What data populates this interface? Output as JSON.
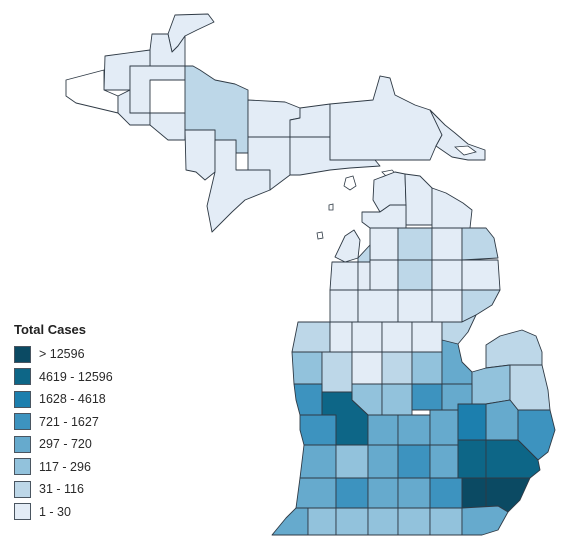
{
  "legend": {
    "title": "Total Cases",
    "items": [
      {
        "label": "> 12596",
        "color": "#0b4a63"
      },
      {
        "label": "4619 - 12596",
        "color": "#0d6687"
      },
      {
        "label": "1628 - 4618",
        "color": "#1c7fae"
      },
      {
        "label": "721 - 1627",
        "color": "#3d93bf"
      },
      {
        "label": "297 - 720",
        "color": "#66aacd"
      },
      {
        "label": "117 - 296",
        "color": "#92c2dc"
      },
      {
        "label": "31 - 116",
        "color": "#bdd7e8"
      },
      {
        "label": "1 - 30",
        "color": "#e3ecf6"
      }
    ]
  }
}
